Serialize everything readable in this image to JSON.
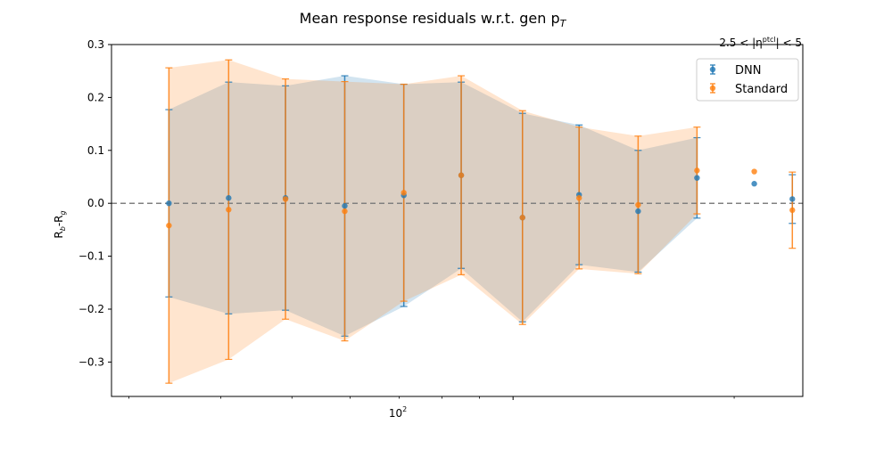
{
  "chart_data": {
    "type": "scatter",
    "title": "Mean response residuals w.r.t. gen p",
    "title_subscript": "T",
    "subtitle": "2.5 < |η",
    "subtitle_sup": "ptcl",
    "subtitle_end": "| < 5",
    "ylabel": "R",
    "ylabel_sub1": "b",
    "ylabel_mid": "-R",
    "ylabel_sub2": "g",
    "xlabel": "",
    "xscale": "log",
    "xlim": [
      28.4,
      248
    ],
    "ylim": [
      -0.365,
      0.3
    ],
    "x_major_tick": {
      "value": 100,
      "base": "10",
      "exponent": "2"
    },
    "x_minor_ticks": [
      30,
      40,
      50,
      60,
      70,
      80,
      90,
      200
    ],
    "y_ticks": [
      -0.3,
      -0.2,
      -0.1,
      0.0,
      0.1,
      0.2,
      0.3
    ],
    "y_tick_labels": [
      "−0.3",
      "−0.2",
      "−0.1",
      "0.0",
      "0.1",
      "0.2",
      "0.3"
    ],
    "reference_line": 0.0,
    "legend_position": "upper right",
    "series": [
      {
        "name": "DNN",
        "color": "#1f77b4",
        "x": [
          34,
          41,
          49,
          59,
          71,
          85,
          103,
          123,
          148,
          178,
          213
        ],
        "y": [
          0.0,
          0.01,
          0.01,
          -0.005,
          0.015,
          0.053,
          -0.027,
          0.016,
          -0.015,
          0.048,
          0.037
        ],
        "err": [
          0.177,
          0.219,
          0.212,
          0.246,
          0.21,
          0.176,
          0.197,
          0.132,
          0.115,
          0.076,
          null
        ],
        "band": true
      },
      {
        "name": "Standard",
        "color": "#ff7f0e",
        "x": [
          34,
          41,
          49,
          59,
          71,
          85,
          103,
          123,
          148,
          178,
          213
        ],
        "y": [
          -0.042,
          -0.012,
          0.008,
          -0.015,
          0.02,
          0.053,
          -0.027,
          0.01,
          -0.003,
          0.062,
          0.06
        ],
        "err": [
          0.298,
          0.283,
          0.227,
          0.245,
          0.205,
          0.188,
          0.202,
          0.134,
          0.13,
          0.082,
          null
        ],
        "band": true
      },
      {
        "name": "DNN",
        "color": "#1f77b4",
        "x": [
          240
        ],
        "y": [
          0.008
        ],
        "err": [
          0.046
        ],
        "band": false
      },
      {
        "name": "Standard",
        "color": "#ff7f0e",
        "x": [
          240
        ],
        "y": [
          -0.013
        ],
        "err": [
          0.072
        ],
        "band": false
      }
    ],
    "legend": [
      {
        "name": "DNN",
        "color": "#1f77b4"
      },
      {
        "name": "Standard",
        "color": "#ff7f0e"
      }
    ]
  }
}
